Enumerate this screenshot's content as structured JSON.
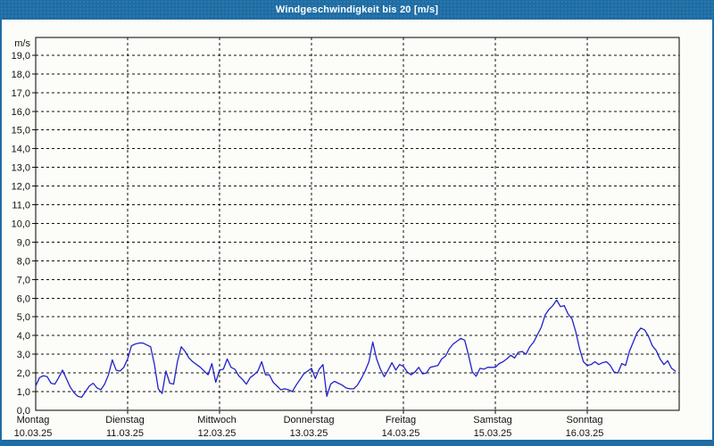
{
  "window": {
    "title": "Windgeschwindigkeit bis 20 [m/s]"
  },
  "colors": {
    "frame": "#1e6da4",
    "surface": "#fcfcf8",
    "line": "#2222cc",
    "grid": "#111111",
    "text": "#111111",
    "title_text": "#ffffff"
  },
  "chart_data": {
    "type": "line",
    "title": "Windgeschwindigkeit bis 20 [m/s]",
    "unit_label": "m/s",
    "ylim": [
      0,
      19.95
    ],
    "y_tick_step": 1,
    "y_tick_labels": [
      "0,0",
      "1,0",
      "2,0",
      "3,0",
      "4,0",
      "5,0",
      "6,0",
      "7,0",
      "8,0",
      "9,0",
      "10,0",
      "11,0",
      "12,0",
      "13,0",
      "14,0",
      "15,0",
      "16,0",
      "17,0",
      "18,0",
      "19,0"
    ],
    "grid": "dashed",
    "legend": "none",
    "x_axis": {
      "days": [
        {
          "name": "Montag",
          "date": "10.03.25"
        },
        {
          "name": "Dienstag",
          "date": "11.03.25"
        },
        {
          "name": "Mittwoch",
          "date": "12.03.25"
        },
        {
          "name": "Donnerstag",
          "date": "13.03.25"
        },
        {
          "name": "Freitag",
          "date": "14.03.25"
        },
        {
          "name": "Samstag",
          "date": "15.03.25"
        },
        {
          "name": "Sonntag",
          "date": "16.03.25"
        }
      ]
    },
    "series": [
      {
        "name": "Windgeschwindigkeit",
        "unit": "m/s",
        "points_per_day": 24,
        "values_by_day": [
          [
            1.3,
            1.75,
            1.85,
            1.8,
            1.45,
            1.4,
            1.75,
            2.15,
            1.7,
            1.25,
            0.95,
            0.75,
            0.7,
            1.0,
            1.3,
            1.45,
            1.2,
            1.1,
            1.4,
            1.9,
            2.7,
            2.15,
            2.1,
            2.3
          ],
          [
            2.75,
            3.45,
            3.55,
            3.6,
            3.6,
            3.5,
            3.4,
            2.45,
            1.15,
            0.9,
            2.1,
            1.45,
            1.4,
            2.6,
            3.4,
            3.15,
            2.8,
            2.6,
            2.45,
            2.3,
            2.1,
            1.9,
            2.5,
            1.5
          ],
          [
            2.15,
            2.2,
            2.75,
            2.3,
            2.2,
            1.85,
            1.65,
            1.4,
            1.75,
            1.9,
            2.1,
            2.6,
            1.9,
            1.9,
            1.5,
            1.3,
            1.1,
            1.15,
            1.1,
            1.0,
            1.35,
            1.65,
            1.95,
            2.1
          ],
          [
            2.25,
            1.7,
            2.2,
            2.45,
            0.75,
            1.4,
            1.55,
            1.45,
            1.35,
            1.2,
            1.15,
            1.15,
            1.35,
            1.7,
            2.1,
            2.6,
            3.65,
            2.75,
            2.2,
            1.8,
            2.15,
            2.55,
            2.15,
            2.45
          ],
          [
            2.35,
            2.05,
            1.9,
            2.05,
            2.3,
            1.95,
            2.0,
            2.3,
            2.35,
            2.4,
            2.75,
            2.9,
            3.3,
            3.55,
            3.7,
            3.85,
            3.75,
            2.95,
            2.05,
            1.82,
            2.25,
            2.2,
            2.3,
            2.3
          ],
          [
            2.3,
            2.5,
            2.6,
            2.75,
            2.95,
            2.8,
            3.1,
            3.15,
            3.0,
            3.4,
            3.65,
            4.05,
            4.45,
            5.1,
            5.4,
            5.6,
            5.9,
            5.55,
            5.6,
            5.15,
            4.9,
            4.2,
            3.3,
            2.6
          ],
          [
            2.4,
            2.45,
            2.6,
            2.45,
            2.55,
            2.6,
            2.4,
            2.05,
            2.0,
            2.5,
            2.4,
            3.15,
            3.65,
            4.15,
            4.4,
            4.3,
            3.95,
            3.45,
            3.2,
            2.75,
            2.45,
            2.65,
            2.25,
            2.1
          ]
        ]
      }
    ]
  }
}
